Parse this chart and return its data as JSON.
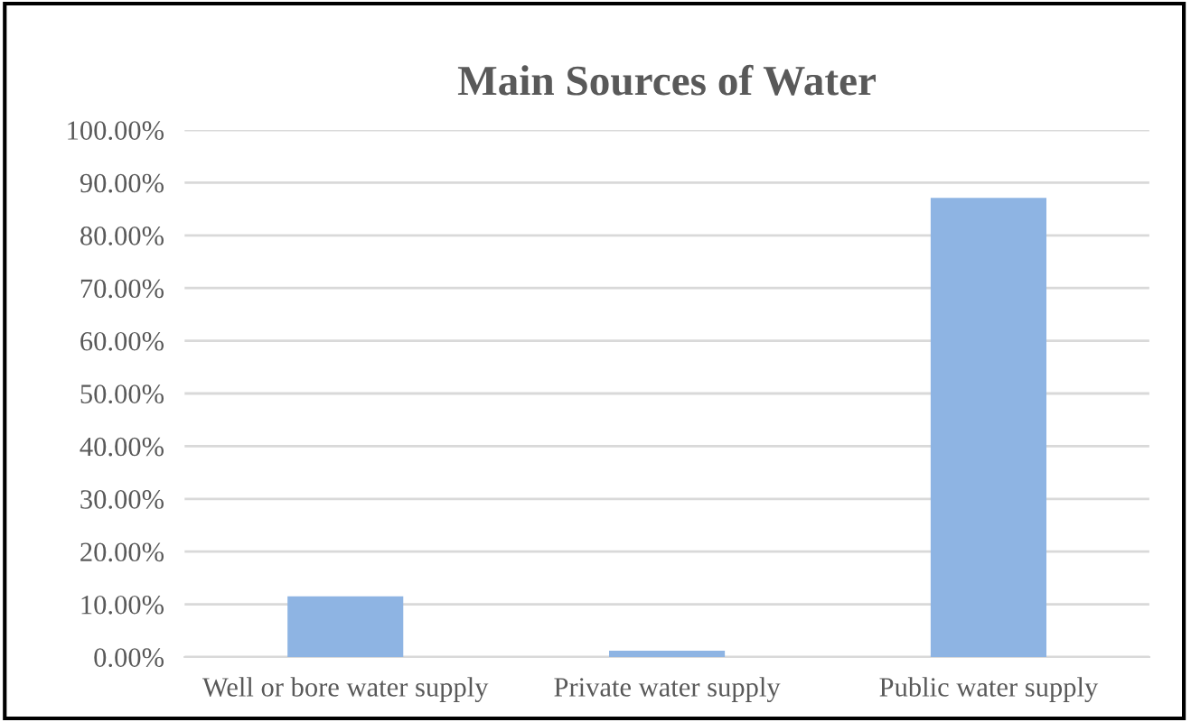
{
  "chart_data": {
    "type": "bar",
    "title": "Main Sources of Water",
    "categories": [
      "Well or bore water supply",
      "Private water supply",
      "Public water supply"
    ],
    "values": [
      11.5,
      1.2,
      87.1
    ],
    "color": "#8eb4e3",
    "ylim": [
      0,
      100
    ],
    "yticks": [
      {
        "value": 0,
        "label": "0.00%"
      },
      {
        "value": 10,
        "label": "10.00%"
      },
      {
        "value": 20,
        "label": "20.00%"
      },
      {
        "value": 30,
        "label": "30.00%"
      },
      {
        "value": 40,
        "label": "40.00%"
      },
      {
        "value": 50,
        "label": "50.00%"
      },
      {
        "value": 60,
        "label": "60.00%"
      },
      {
        "value": 70,
        "label": "70.00%"
      },
      {
        "value": 80,
        "label": "80.00%"
      },
      {
        "value": 90,
        "label": "90.00%"
      },
      {
        "value": 100,
        "label": "100.00%"
      }
    ],
    "grid": "y",
    "legend": false
  }
}
